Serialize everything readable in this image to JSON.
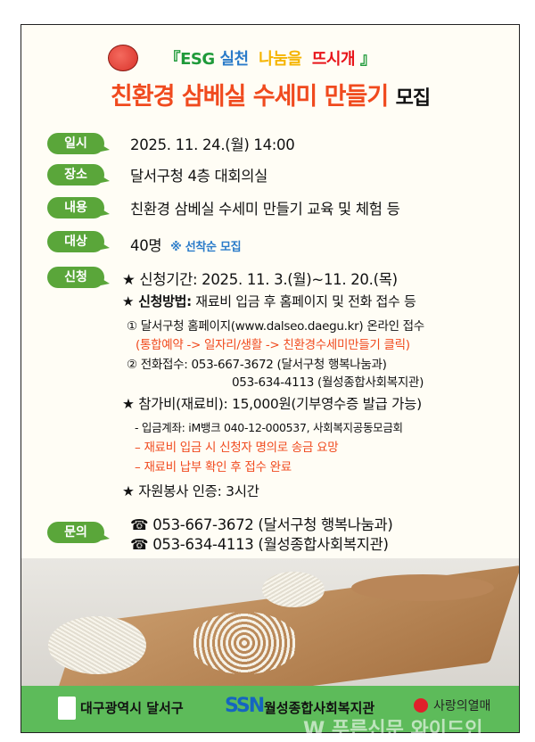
{
  "header": {
    "tag_open": "『",
    "esg": "ESG",
    "silcheon": "실천",
    "nanum": "나눔을",
    "tteu": "뜨시개",
    "tag_close": "』",
    "title": "친환경 삼베실 수세미 만들기",
    "title_suffix": "모집"
  },
  "labels": {
    "date": "일시",
    "place": "장소",
    "content": "내용",
    "target": "대상",
    "apply": "신청",
    "inquiry": "문의"
  },
  "info": {
    "date": "2025. 11. 24.(월)  14:00",
    "place": "달서구청 4층 대회의실",
    "content": "친환경 삼베실 수세미 만들기 교육 및 체험 등",
    "target": "40명",
    "target_note": "※ 선착순 모집"
  },
  "apply": {
    "period": "★ 신청기간: 2025. 11. 3.(월)~11. 20.(목)",
    "method_label": "★ 신청방법:",
    "method": "재료비 입금 후 홈페이지 및 전화 접수 등",
    "online": "① 달서구청 홈페이지(www.dalseo.daegu.kr) 온라인 접수",
    "online_path": "(통합예약 -> 일자리/생활 -> 친환경수세미만들기 클릭)",
    "phone": "② 전화접수: 053-667-3672 (달서구청 행복나눔과)",
    "phone2": "053-634-4113 (월성종합사회복지관)",
    "fee": "★ 참가비(재료비): 15,000원(기부영수증 발급 가능)",
    "account": "- 입금계좌:  iM뱅크 040-12-000537, 사회복지공동모금회",
    "note1": "– 재료비 입금 시 신청자 명의로 송금 요망",
    "note2": "– 재료비 납부 확인 후 접수 완료",
    "volunteer": "★ 자원봉사 인증: 3시간"
  },
  "inquiry": {
    "phone1": "☎ 053-667-3672 (달서구청 행복나눔과)",
    "phone2": "☎ 053-634-4113  (월성종합사회복지관)"
  },
  "footer": {
    "org1": "대구광역시 달서구",
    "org2_logo": "SSN",
    "org2": "월성종합사회복지관",
    "org3": "사랑의열매"
  },
  "watermark": "W 푸른신문 와이드인",
  "colors": {
    "green": "#5aa63a",
    "red": "#f04a1e",
    "blue": "#2a7bc9",
    "yellow": "#f5b400",
    "esg_green": "#1f9a3a",
    "footer": "#5dbb5a"
  }
}
